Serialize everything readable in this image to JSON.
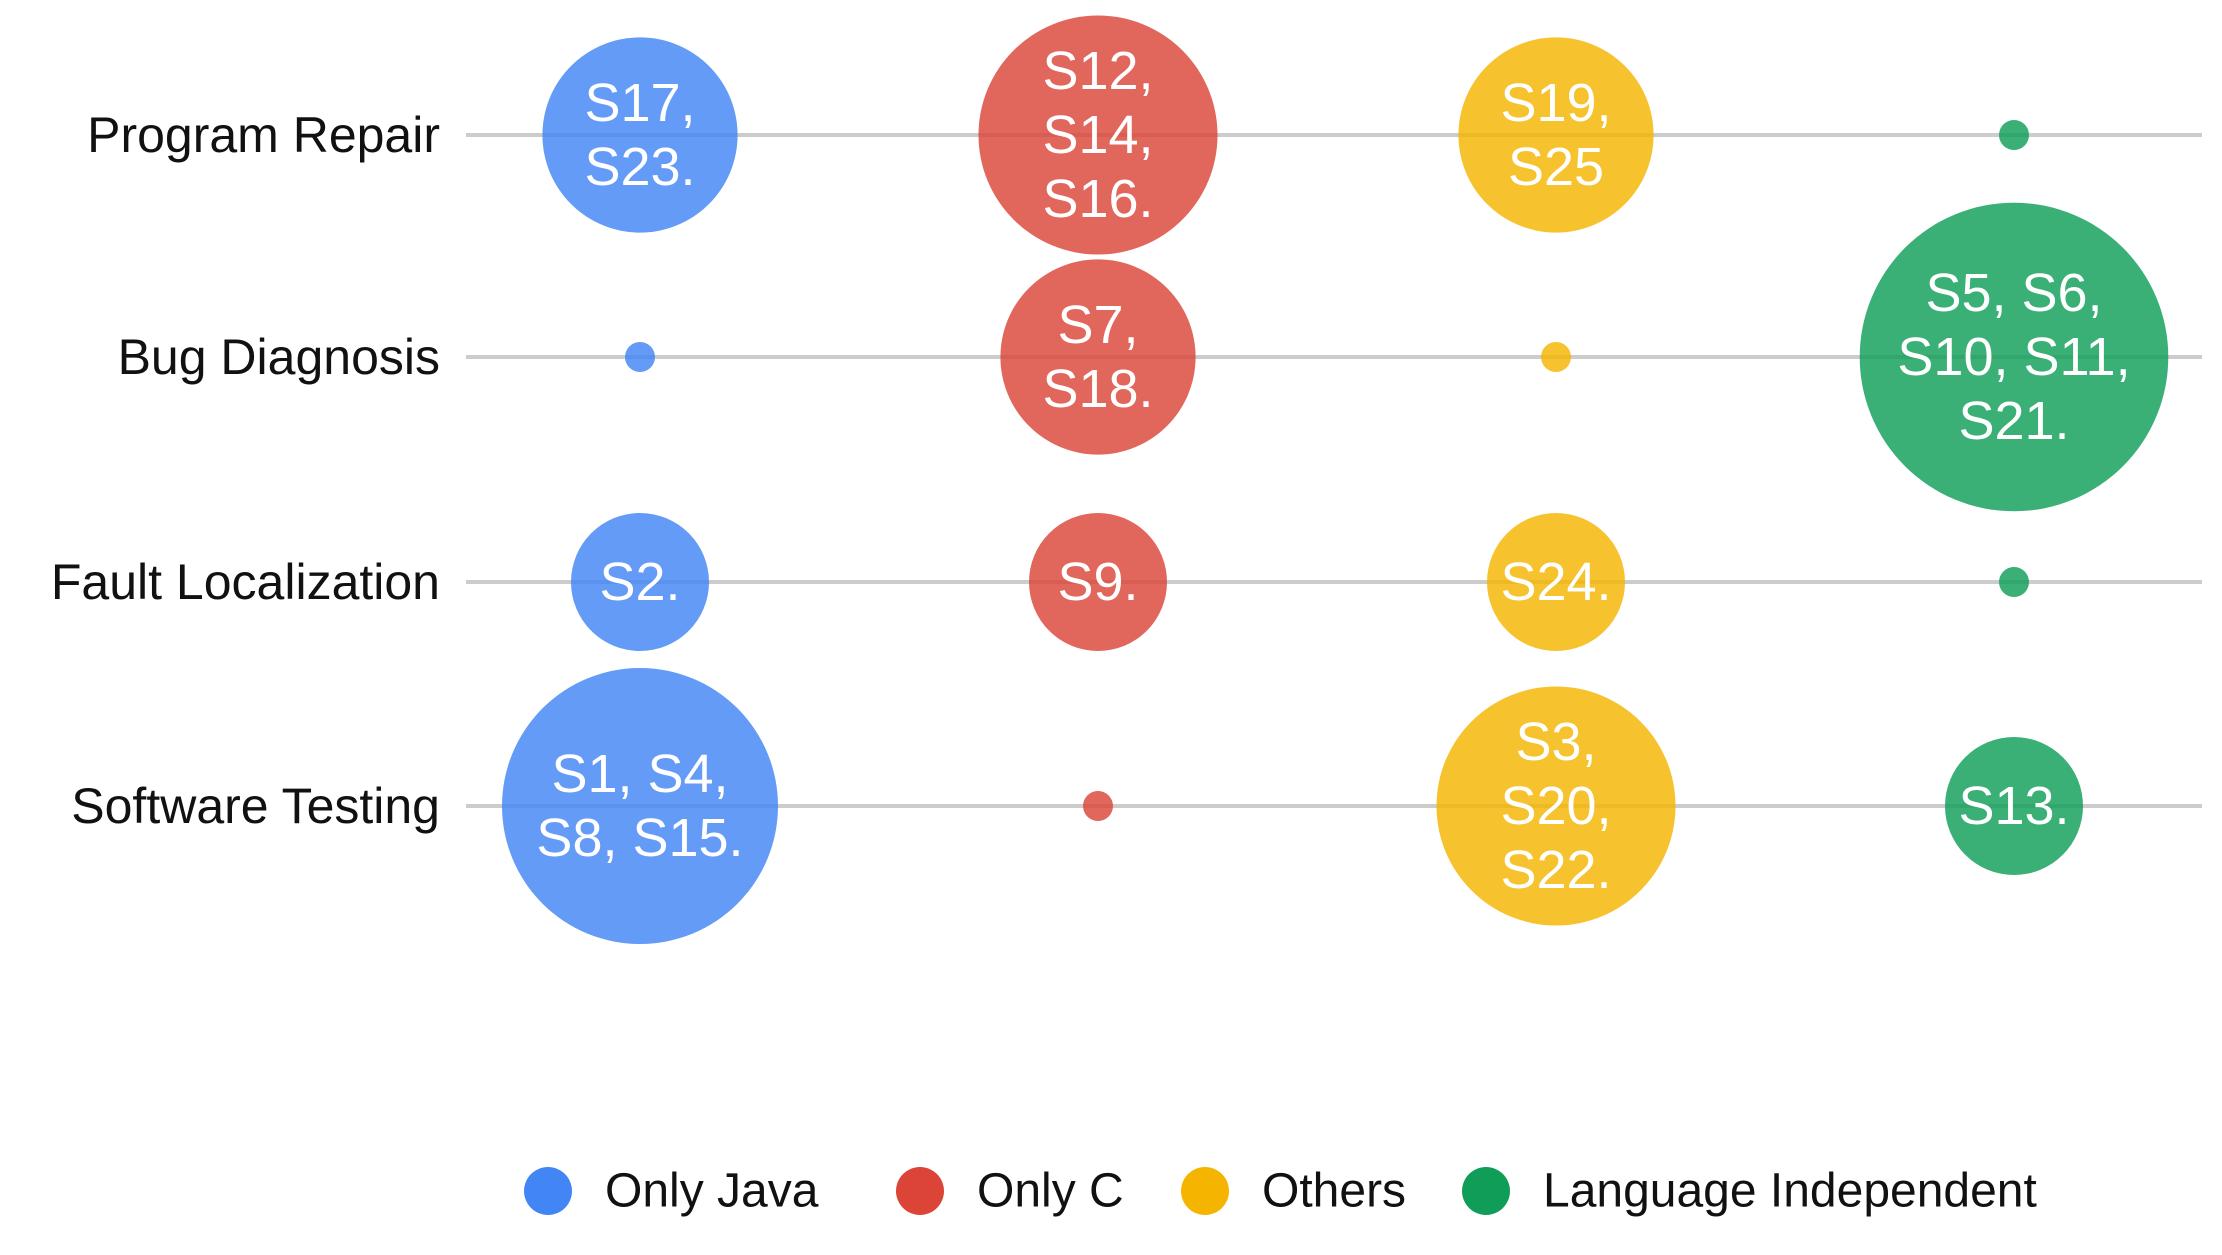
{
  "chart_data": {
    "type": "bubble-matrix",
    "title": "",
    "rows": [
      "Program Repair",
      "Bug Diagnosis",
      "Fault Localization",
      "Software Testing"
    ],
    "series": [
      {
        "name": "Only Java",
        "color": "#4285F4",
        "points": [
          {
            "row": "Program Repair",
            "count": 2,
            "studies": [
              "S17,",
              "S23."
            ]
          },
          {
            "row": "Bug Diagnosis",
            "count": 0,
            "studies": []
          },
          {
            "row": "Fault Localization",
            "count": 1,
            "studies": [
              "S2."
            ]
          },
          {
            "row": "Software Testing",
            "count": 4,
            "studies": [
              "S1, S4,",
              "S8, S15."
            ]
          }
        ]
      },
      {
        "name": "Only C",
        "color": "#DB4437",
        "points": [
          {
            "row": "Program Repair",
            "count": 3,
            "studies": [
              "S12,",
              "S14,",
              "S16."
            ]
          },
          {
            "row": "Bug Diagnosis",
            "count": 2,
            "studies": [
              "S7,",
              "S18."
            ]
          },
          {
            "row": "Fault Localization",
            "count": 1,
            "studies": [
              "S9."
            ]
          },
          {
            "row": "Software Testing",
            "count": 0,
            "studies": []
          }
        ]
      },
      {
        "name": "Others",
        "color": "#F4B400",
        "points": [
          {
            "row": "Program Repair",
            "count": 2,
            "studies": [
              "S19,",
              "S25"
            ]
          },
          {
            "row": "Bug Diagnosis",
            "count": 0,
            "studies": []
          },
          {
            "row": "Fault Localization",
            "count": 1,
            "studies": [
              "S24."
            ]
          },
          {
            "row": "Software Testing",
            "count": 3,
            "studies": [
              "S3,",
              "S20,",
              "S22."
            ]
          }
        ]
      },
      {
        "name": "Language Independent",
        "color": "#0F9D58",
        "points": [
          {
            "row": "Program Repair",
            "count": 0,
            "studies": []
          },
          {
            "row": "Bug Diagnosis",
            "count": 5,
            "studies": [
              "S5, S6,",
              "S10, S11,",
              "S21."
            ]
          },
          {
            "row": "Fault Localization",
            "count": 0,
            "studies": []
          },
          {
            "row": "Software Testing",
            "count": 1,
            "studies": [
              "S13."
            ]
          }
        ]
      }
    ],
    "legend": [
      "Only Java",
      "Only C",
      "Others",
      "Language Independent"
    ],
    "legend_position": "bottom"
  }
}
